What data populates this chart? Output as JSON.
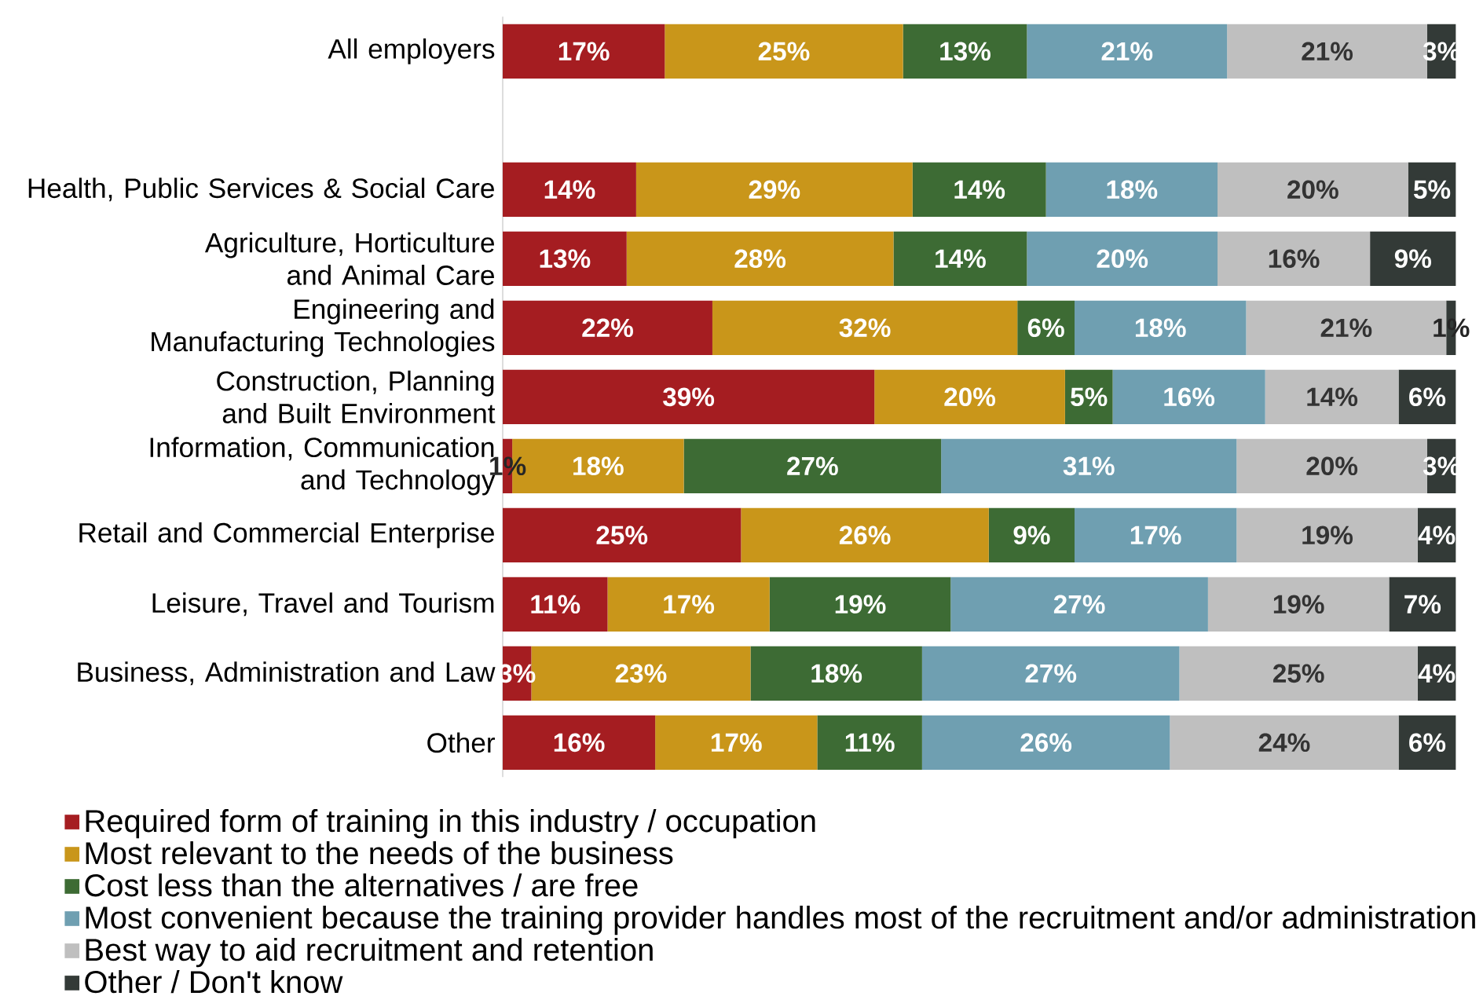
{
  "chart_data": {
    "type": "bar",
    "orientation": "horizontal",
    "stacked": true,
    "tick_labels": "y",
    "legend": "bottom",
    "categories": [
      "All employers",
      null,
      "Health, Public Services & Social Care",
      "Agriculture, Horticulture and Animal Care",
      "Engineering and Manufacturing Technologies",
      "Construction, Planning and Built Environment",
      "Information, Communication and Technology",
      "Retail and Commercial Enterprise",
      "Leisure, Travel and Tourism",
      "Business, Administration and Law",
      "Other"
    ],
    "series": [
      {
        "name": "Required form of training in this industry / occupation",
        "color": "#a51d21",
        "values": [
          17,
          null,
          14,
          13,
          22,
          39,
          1,
          25,
          11,
          3,
          16
        ],
        "value_labels": [
          "17%",
          null,
          "14%",
          "13%",
          "22%",
          "39%",
          "1%",
          "25%",
          "11%",
          "3%",
          "16%"
        ]
      },
      {
        "name": "Most relevant to the needs of the business",
        "color": "#c9961a",
        "values": [
          25,
          null,
          29,
          28,
          32,
          20,
          18,
          26,
          17,
          23,
          17
        ],
        "value_labels": [
          "25%",
          null,
          "29%",
          "28%",
          "32%",
          "20%",
          "18%",
          "26%",
          "17%",
          "23%",
          "17%"
        ]
      },
      {
        "name": "Cost less than the alternatives / are free",
        "color": "#3d6b34",
        "values": [
          13,
          null,
          14,
          14,
          6,
          5,
          27,
          9,
          19,
          18,
          11
        ],
        "value_labels": [
          "13%",
          null,
          "14%",
          "14%",
          "6%",
          "5%",
          "27%",
          "9%",
          "19%",
          "18%",
          "11%"
        ]
      },
      {
        "name": "Most convenient because the training provider handles most of the recruitment and/or administration",
        "color": "#6f9fb1",
        "values": [
          21,
          null,
          18,
          20,
          18,
          16,
          31,
          17,
          27,
          27,
          26
        ],
        "value_labels": [
          "21%",
          null,
          "18%",
          "20%",
          "18%",
          "16%",
          "31%",
          "17%",
          "27%",
          "27%",
          "26%"
        ]
      },
      {
        "name": "Best way to aid recruitment and retention",
        "color": "#bfbfbf",
        "values": [
          21,
          null,
          20,
          16,
          21,
          14,
          20,
          19,
          19,
          25,
          24
        ],
        "value_labels": [
          "21%",
          null,
          "20%",
          "16%",
          "21%",
          "14%",
          "20%",
          "19%",
          "19%",
          "25%",
          "24%"
        ]
      },
      {
        "name": "Other / Don't know",
        "color": "#333a37",
        "values": [
          3,
          null,
          5,
          9,
          1,
          6,
          3,
          4,
          7,
          4,
          6
        ],
        "value_labels": [
          "3%",
          null,
          "5%",
          "9%",
          "1%",
          "6%",
          "3%",
          "4%",
          "7%",
          "4%",
          "6%"
        ]
      }
    ]
  }
}
